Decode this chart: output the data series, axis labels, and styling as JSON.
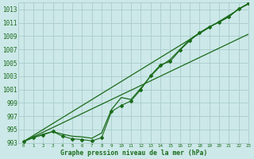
{
  "title": "Graphe pression niveau de la mer (hPa)",
  "hours": [
    0,
    1,
    2,
    3,
    4,
    5,
    6,
    7,
    8,
    9,
    10,
    11,
    12,
    13,
    14,
    15,
    16,
    17,
    18,
    19,
    20,
    21,
    22,
    23
  ],
  "ylim": [
    993,
    1014
  ],
  "yticks": [
    993,
    995,
    997,
    999,
    1001,
    1003,
    1005,
    1007,
    1009,
    1011,
    1013
  ],
  "background_color": "#cce8e8",
  "grid_color": "#aacccc",
  "line_color": "#1a6b1a",
  "series_straight1": [
    993.2,
    994.1,
    995.0,
    995.9,
    996.8,
    997.7,
    998.6,
    999.5,
    1000.4,
    1001.3,
    1002.2,
    1003.1,
    1004.0,
    1004.9,
    1005.8,
    1006.7,
    1007.6,
    1008.5,
    1009.4,
    1010.3,
    1011.2,
    1012.1,
    1013.0,
    1013.9
  ],
  "series_straight2": [
    993.2,
    993.9,
    994.6,
    995.3,
    996.0,
    996.7,
    997.4,
    998.1,
    998.8,
    999.5,
    1000.2,
    1000.9,
    1001.6,
    1002.3,
    1003.0,
    1003.7,
    1004.4,
    1005.1,
    1005.8,
    1006.5,
    1007.2,
    1007.9,
    1008.6,
    1009.3
  ],
  "series_smooth": [
    993.2,
    993.8,
    994.3,
    994.7,
    994.3,
    994.0,
    993.9,
    993.7,
    994.5,
    998.0,
    999.8,
    999.5,
    1001.2,
    1003.0,
    1004.5,
    1005.5,
    1007.0,
    1008.5,
    1009.5,
    1010.4,
    1011.1,
    1011.9,
    1013.1,
    1013.8
  ],
  "series_markers": [
    993.2,
    993.8,
    994.2,
    994.7,
    994.0,
    993.6,
    993.5,
    993.3,
    993.8,
    997.7,
    998.6,
    999.3,
    1001.0,
    1003.1,
    1004.7,
    1005.2,
    1006.9,
    1008.3,
    1009.5,
    1010.4,
    1011.1,
    1011.9,
    1013.1,
    1013.9
  ]
}
